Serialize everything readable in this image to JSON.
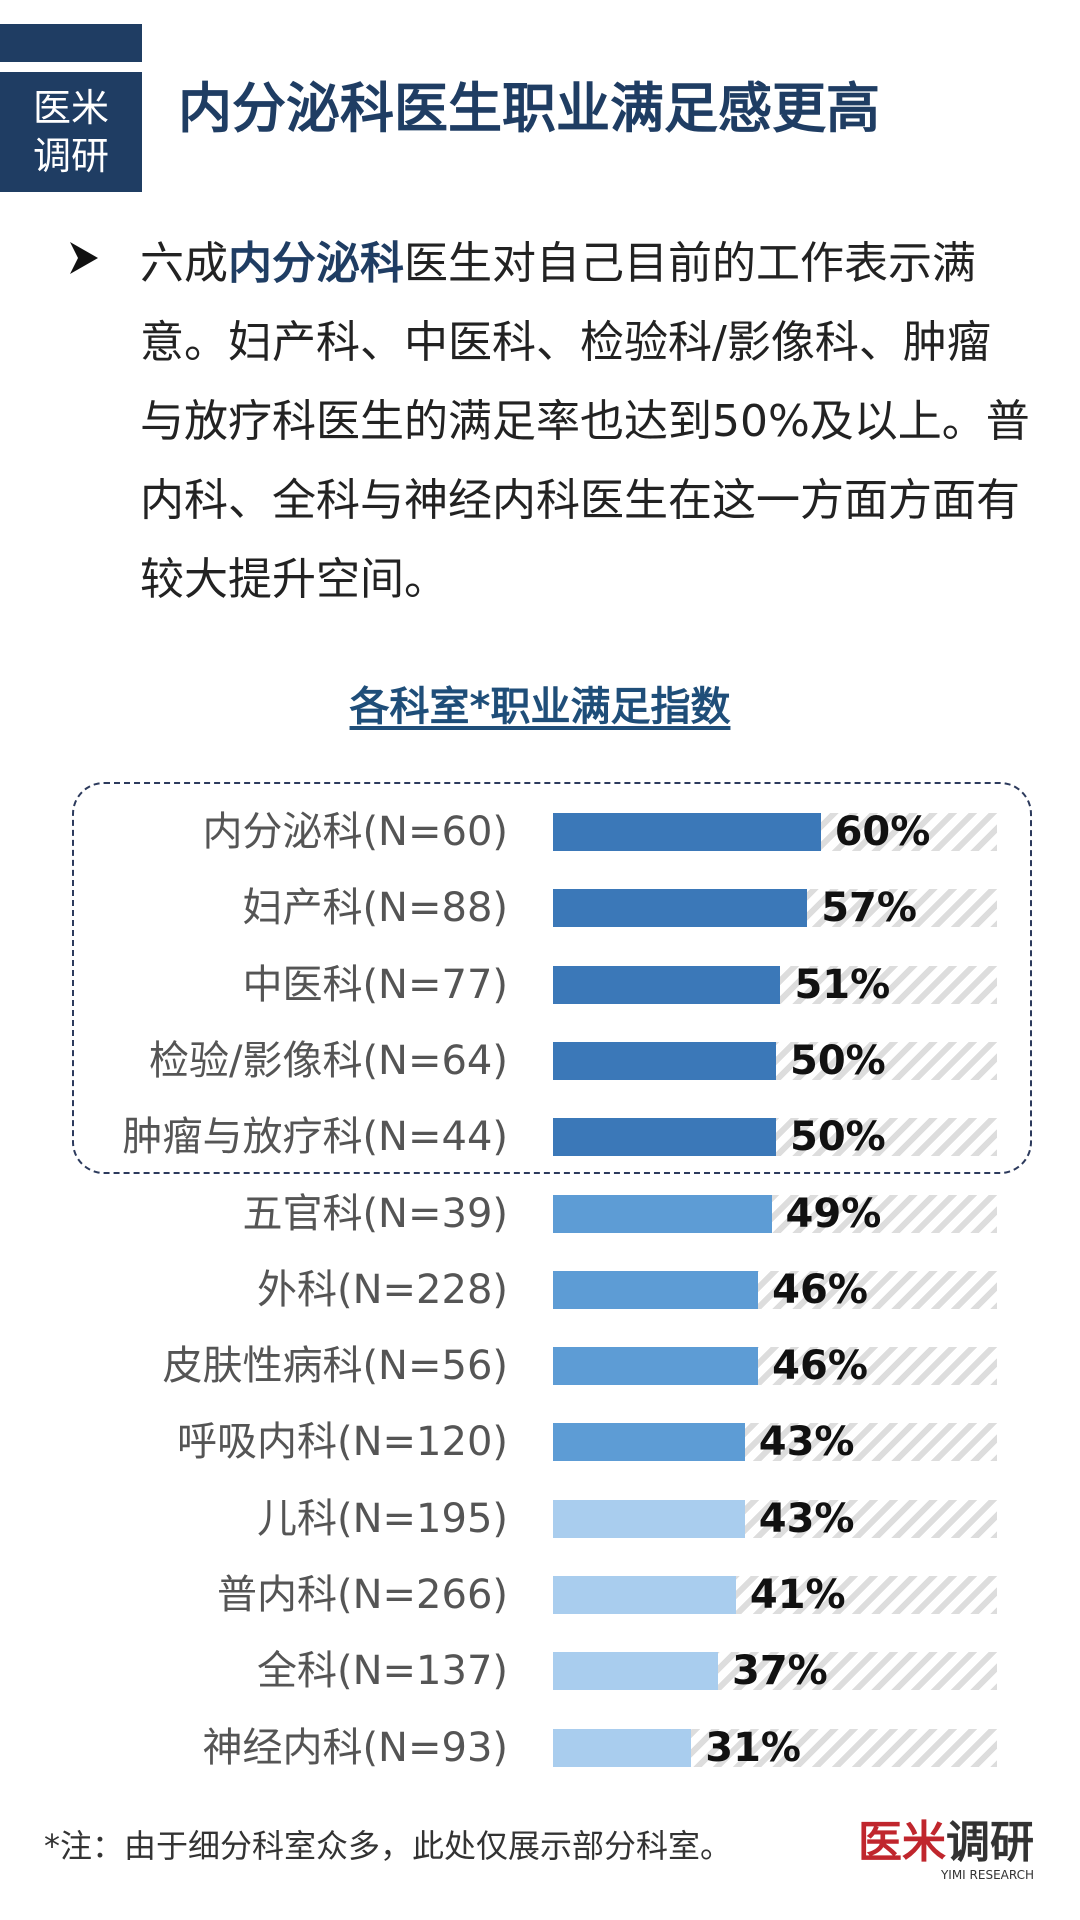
{
  "header": {
    "logo_line1": "医米",
    "logo_line2": "调研",
    "title": "内分泌科医生职业满足感更高",
    "accent_color": "#1f3d63"
  },
  "intro": {
    "bullet_icon": "arrow-bullet-icon",
    "prefix": "六成",
    "highlight": "内分泌科",
    "rest": "医生对自己目前的工作表示满意。妇产科、中医科、检验科/影像科、肿瘤与放疗科医生的满足率也达到50%及以上。普内科、全科与神经内科医生在这一方面方面有较大提升空间。"
  },
  "chart_data": {
    "type": "bar",
    "orientation": "horizontal",
    "title": "各科室*职业满足指数",
    "xlim": [
      0,
      100
    ],
    "categories": [
      "内分泌科(N=60)",
      "妇产科(N=88)",
      "中医科(N=77)",
      "检验/影像科(N=64)",
      "肿瘤与放疗科(N=44)",
      "五官科(N=39)",
      "外科(N=228)",
      "皮肤性病科(N=56)",
      "呼吸内科(N=120)",
      "儿科(N=195)",
      "普内科(N=266)",
      "全科(N=137)",
      "神经内科(N=93)"
    ],
    "values": [
      60,
      57,
      51,
      50,
      50,
      49,
      46,
      46,
      43,
      43,
      41,
      37,
      31
    ],
    "value_labels": [
      "60%",
      "57%",
      "51%",
      "50%",
      "50%",
      "49%",
      "46%",
      "46%",
      "43%",
      "43%",
      "41%",
      "37%",
      "31%"
    ],
    "colors": [
      "#3b78b8",
      "#3b78b8",
      "#3b78b8",
      "#3b78b8",
      "#3b78b8",
      "#5d9cd5",
      "#5d9cd5",
      "#5d9cd5",
      "#5d9cd5",
      "#a9cdee",
      "#a9cdee",
      "#a9cdee",
      "#a9cdee"
    ],
    "highlighted_groups": [
      "内分泌科(N=60)",
      "妇产科(N=88)",
      "中医科(N=77)",
      "检验/影像科(N=64)",
      "肿瘤与放疗科(N=44)"
    ]
  },
  "footer": {
    "note": "*注：由于细分科室众多，此处仅展示部分科室。",
    "brand_red": "医米",
    "brand_grey": "调研",
    "brand_sub": "YIMI RESEARCH"
  }
}
